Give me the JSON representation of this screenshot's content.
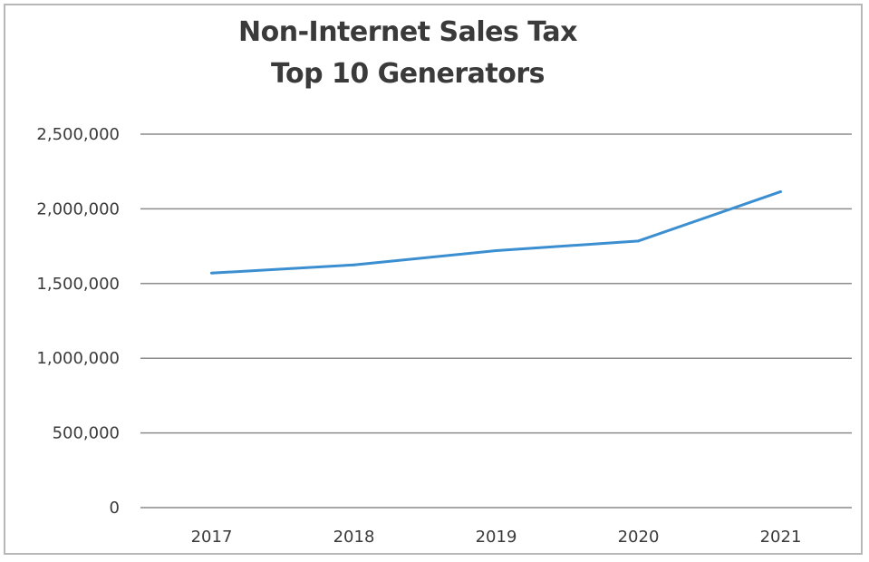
{
  "chart_data": {
    "type": "line",
    "title": "Non-Internet Sales Tax",
    "subtitle": "Top 10 Generators",
    "xlabel": "",
    "ylabel": "",
    "categories": [
      "2017",
      "2018",
      "2019",
      "2020",
      "2021"
    ],
    "series": [
      {
        "values": [
          1570000,
          1625000,
          1720000,
          1785000,
          2115000
        ],
        "color": "#3b8fd0"
      }
    ],
    "ylim": [
      0,
      2500000
    ],
    "yticks": [
      0,
      500000,
      1000000,
      1500000,
      2000000,
      2500000
    ],
    "ytick_labels": [
      "0",
      "500,000",
      "1,000,000",
      "1,500,000",
      "2,000,000",
      "2,500,000"
    ],
    "grid": true,
    "legend": "none"
  }
}
